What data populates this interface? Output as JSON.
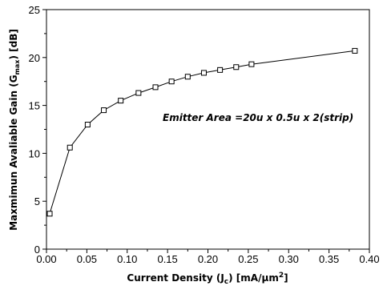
{
  "chart_data": {
    "type": "line",
    "title": "",
    "xlabel": {
      "prefix": "Current Density (J",
      "sub": "c",
      "mid": ") [mA/",
      "mu": "μ",
      "unit": "m",
      "sup": "2",
      "suffix": "]"
    },
    "ylabel": {
      "prefix": "Maxmimun Avaliable Gain (G",
      "sub": "max",
      "suffix": ") [dB]"
    },
    "xlim": [
      0.0,
      0.4
    ],
    "ylim": [
      0,
      25
    ],
    "x_ticks": [
      "0.00",
      "0.05",
      "0.10",
      "0.15",
      "0.20",
      "0.25",
      "0.30",
      "0.35",
      "0.40"
    ],
    "y_ticks": [
      "0",
      "5",
      "10",
      "15",
      "20",
      "25"
    ],
    "grid": false,
    "marker": "open-square",
    "series": [
      {
        "x": [
          0.004,
          0.029,
          0.051,
          0.071,
          0.092,
          0.114,
          0.135,
          0.155,
          0.175,
          0.195,
          0.215,
          0.235,
          0.254,
          0.382
        ],
        "y": [
          3.7,
          10.6,
          13.0,
          14.5,
          15.5,
          16.3,
          16.9,
          17.5,
          18.0,
          18.4,
          18.7,
          19.0,
          19.3,
          20.7
        ]
      }
    ],
    "annotation": "Emitter Area =20u x 0.5u x 2(strip)"
  }
}
